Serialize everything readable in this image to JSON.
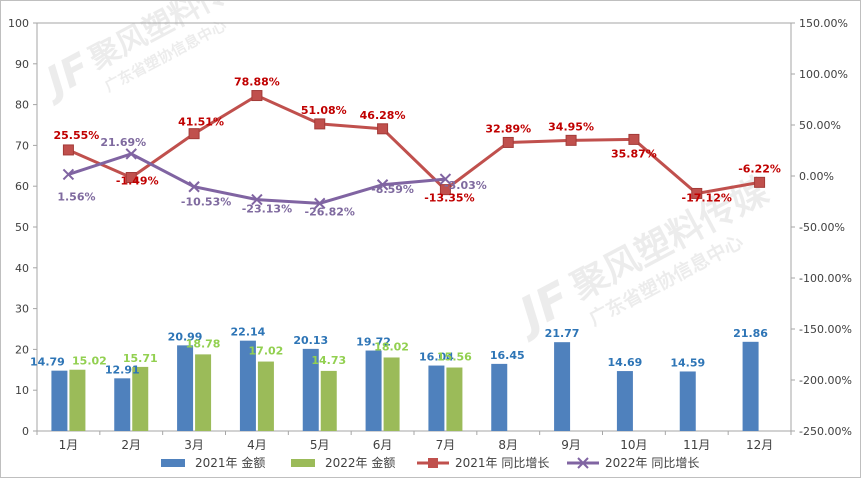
{
  "chart_data": {
    "type": "bar+line",
    "categories": [
      "1月",
      "2月",
      "3月",
      "4月",
      "5月",
      "6月",
      "7月",
      "8月",
      "9月",
      "10月",
      "11月",
      "12月"
    ],
    "y_left": {
      "range": [
        0,
        100
      ],
      "ticks": [
        "0",
        "10",
        "20",
        "30",
        "40",
        "50",
        "60",
        "70",
        "80",
        "90",
        "100"
      ]
    },
    "y_right": {
      "range": [
        -250,
        150
      ],
      "ticks": [
        "-250.00%",
        "-200.00%",
        "-150.00%",
        "-100.00%",
        "-50.00%",
        "0.00%",
        "50.00%",
        "100.00%",
        "150.00%"
      ]
    },
    "series": [
      {
        "name": "2021年 金额",
        "kind": "bar",
        "axis": "left",
        "color": "#4F81BD",
        "label_color": "#2E75B6",
        "values": [
          14.79,
          12.91,
          20.99,
          22.14,
          20.13,
          19.72,
          16.04,
          16.45,
          21.77,
          14.69,
          14.59,
          21.86
        ],
        "labels": [
          "14.79",
          "12.91",
          "20.99",
          "22.14",
          "20.13",
          "19.72",
          "16.04",
          "16.45",
          "21.77",
          "14.69",
          "14.59",
          "21.86"
        ]
      },
      {
        "name": "2022年 金额",
        "kind": "bar",
        "axis": "left",
        "color": "#9BBB59",
        "label_color": "#92D050",
        "values": [
          15.02,
          15.71,
          18.78,
          17.02,
          14.73,
          18.02,
          15.56,
          null,
          null,
          null,
          null,
          null
        ],
        "labels": [
          "15.02",
          "15.71",
          "18.78",
          "17.02",
          "14.73",
          "18.02",
          "15.56",
          "",
          "",
          "",
          "",
          ""
        ]
      },
      {
        "name": "2021年 同比增长",
        "kind": "line",
        "marker": "square",
        "axis": "right",
        "color": "#C0504D",
        "label_color": "#C00000",
        "values": [
          25.55,
          -1.49,
          41.51,
          78.88,
          51.08,
          46.28,
          -13.35,
          32.89,
          34.95,
          35.87,
          -17.12,
          -6.22
        ],
        "labels": [
          "25.55%",
          "-1.49%",
          "41.51%",
          "78.88%",
          "51.08%",
          "46.28%",
          "-13.35%",
          "32.89%",
          "34.95%",
          "35.87%",
          "-17.12%",
          "-6.22%"
        ]
      },
      {
        "name": "2022年 同比增长",
        "kind": "line",
        "marker": "x",
        "axis": "right",
        "color": "#8064A2",
        "label_color": "#7F6A9F",
        "values": [
          1.56,
          21.69,
          -10.53,
          -23.13,
          -26.82,
          -8.59,
          -3.03,
          null,
          null,
          null,
          null,
          null
        ],
        "labels": [
          "1.56%",
          "21.69%",
          "-10.53%",
          "-23.13%",
          "-26.82%",
          "-8.59%",
          "-3.03%",
          "",
          "",
          "",
          "",
          ""
        ]
      }
    ],
    "legend_position": "bottom"
  },
  "watermark": {
    "logo_text": "JF",
    "title": "聚风塑料传媒",
    "subtitle": "广东省塑协信息中心"
  }
}
